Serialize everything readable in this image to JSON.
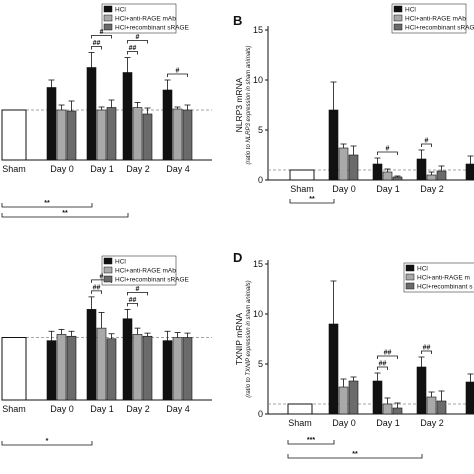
{
  "chart_data": [
    {
      "panel": "",
      "type": "bar",
      "ylabel": "",
      "ylabel_sub": "",
      "categories": [
        "Sham",
        "Day 0",
        "Day 1",
        "Day 2",
        "Day 4"
      ],
      "yticks": [],
      "series": [
        {
          "name": "HCl",
          "color": "#111111",
          "values": [
            1.0,
            1.45,
            1.85,
            1.75,
            1.4
          ],
          "errors": [
            0,
            0.15,
            0.3,
            0.3,
            0.2
          ]
        },
        {
          "name": "HCl+anti-RAGE mAb",
          "color": "#a9a9a9",
          "values": [
            null,
            1.0,
            1.0,
            1.05,
            1.02
          ],
          "errors": [
            null,
            0.1,
            0.06,
            0.1,
            0.04
          ]
        },
        {
          "name": "HCl+recombinant sRAGE",
          "color": "#6b6b6b",
          "values": [
            null,
            0.98,
            1.05,
            0.92,
            1.0
          ],
          "errors": [
            null,
            0.2,
            0.15,
            0.12,
            0.1
          ]
        }
      ],
      "sham_color": "#ffffff",
      "ylim": [
        0,
        2.8
      ],
      "brackets_top": [
        {
          "cat": 2,
          "from": 0,
          "to": 1,
          "label": "##"
        },
        {
          "cat": 2,
          "from": 0,
          "to": 2,
          "label": "#"
        },
        {
          "cat": 3,
          "from": 0,
          "to": 1,
          "label": "##"
        },
        {
          "cat": 3,
          "from": 0,
          "to": 2,
          "label": "#"
        },
        {
          "cat": 4,
          "from": 0,
          "to": 2,
          "label": "#"
        }
      ],
      "brackets_bottom": [
        {
          "from": 0,
          "to": 2,
          "label": "**"
        },
        {
          "from": 0,
          "to": 3,
          "label": "**"
        }
      ]
    },
    {
      "panel": "B",
      "type": "bar",
      "ylabel": "NLRP3 mRNA",
      "ylabel_sub": "(ratio to NLRP3 expression in sham animals)",
      "categories": [
        "Sham",
        "Day 0",
        "Day 1",
        "Day 2"
      ],
      "yticks": [
        0,
        5,
        10,
        15
      ],
      "series": [
        {
          "name": "HCl",
          "color": "#111111",
          "values": [
            1.0,
            7.0,
            1.6,
            2.1
          ],
          "errors": [
            0,
            2.8,
            0.6,
            0.9
          ]
        },
        {
          "name": "HCl+anti-RAGE mAb",
          "color": "#a9a9a9",
          "values": [
            null,
            3.2,
            0.8,
            0.5
          ],
          "errors": [
            null,
            0.4,
            0.3,
            0.3
          ]
        },
        {
          "name": "HCl+recombinant sRAGE",
          "color": "#6b6b6b",
          "values": [
            null,
            2.5,
            0.3,
            0.9
          ],
          "errors": [
            null,
            0.9,
            0.1,
            0.5
          ]
        }
      ],
      "extra_bar": {
        "value": 1.6,
        "error": 0.8
      },
      "sham_color": "#ffffff",
      "ylim": [
        0,
        15
      ],
      "brackets_top": [
        {
          "cat": 2,
          "from": 0,
          "to": 2,
          "label": "#"
        },
        {
          "cat": 3,
          "from": 0,
          "to": 1,
          "label": "#"
        }
      ],
      "brackets_bottom": [
        {
          "from": 0,
          "to": 1,
          "label": "**"
        }
      ]
    },
    {
      "panel": "",
      "type": "bar",
      "ylabel": "",
      "ylabel_sub": "",
      "categories": [
        "Sham",
        "Day 0",
        "Day 1",
        "Day 2",
        "Day 4"
      ],
      "yticks": [],
      "series": [
        {
          "name": "HCl",
          "color": "#111111",
          "values": [
            1.0,
            0.95,
            1.45,
            1.3,
            0.95
          ],
          "errors": [
            0,
            0.15,
            0.2,
            0.15,
            0.15
          ]
        },
        {
          "name": "HCl+anti-RAGE mAb",
          "color": "#a9a9a9",
          "values": [
            null,
            1.05,
            1.15,
            1.05,
            1.0
          ],
          "errors": [
            null,
            0.08,
            0.25,
            0.1,
            0.08
          ]
        },
        {
          "name": "HCl+recombinant sRAGE",
          "color": "#6b6b6b",
          "values": [
            null,
            1.02,
            0.98,
            1.02,
            1.0
          ],
          "errors": [
            null,
            0.08,
            0.08,
            0.05,
            0.07
          ]
        }
      ],
      "sham_color": "#ffffff",
      "ylim": [
        0,
        2.4
      ],
      "brackets_top": [
        {
          "cat": 2,
          "from": 0,
          "to": 1,
          "label": "##"
        },
        {
          "cat": 2,
          "from": 0,
          "to": 2,
          "label": "#"
        },
        {
          "cat": 3,
          "from": 0,
          "to": 1,
          "label": "##"
        },
        {
          "cat": 3,
          "from": 0,
          "to": 2,
          "label": "#"
        }
      ],
      "brackets_bottom": [
        {
          "from": 0,
          "to": 2,
          "label": "*"
        }
      ]
    },
    {
      "panel": "D",
      "type": "bar",
      "ylabel": "TXNIP mRNA",
      "ylabel_sub": "(ratio to TXNIP expression in sham animals)",
      "categories": [
        "Sham",
        "Day 0",
        "Day 1",
        "Day 2"
      ],
      "yticks": [
        0,
        5,
        10,
        15
      ],
      "series": [
        {
          "name": "HCl",
          "color": "#111111",
          "values": [
            1.0,
            9.0,
            3.3,
            4.7
          ],
          "errors": [
            0,
            4.3,
            0.8,
            1.0
          ]
        },
        {
          "name": "HCl+anti-RAGE mAb",
          "color": "#a9a9a9",
          "values": [
            null,
            2.7,
            1.0,
            1.7
          ],
          "errors": [
            null,
            0.8,
            0.6,
            0.5
          ]
        },
        {
          "name": "HCl+recombinant sRAGE",
          "color": "#6b6b6b",
          "values": [
            null,
            3.3,
            0.6,
            1.3
          ],
          "errors": [
            null,
            0.4,
            0.5,
            1.0
          ]
        }
      ],
      "extra_bar": {
        "value": 3.2,
        "error": 0.8
      },
      "sham_color": "#ffffff",
      "ylim": [
        0,
        15
      ],
      "brackets_top": [
        {
          "cat": 2,
          "from": 0,
          "to": 1,
          "label": "##"
        },
        {
          "cat": 2,
          "from": 0,
          "to": 2,
          "label": "##"
        },
        {
          "cat": 3,
          "from": 0,
          "to": 1,
          "label": "##"
        }
      ],
      "brackets_bottom": [
        {
          "from": 0,
          "to": 1,
          "label": "***"
        },
        {
          "from": 0,
          "to": 3,
          "label": "**"
        }
      ]
    }
  ],
  "legend_labels_d": [
    "HCl",
    "HCl+anti-RAGE m",
    "HCl+recombinant s"
  ]
}
